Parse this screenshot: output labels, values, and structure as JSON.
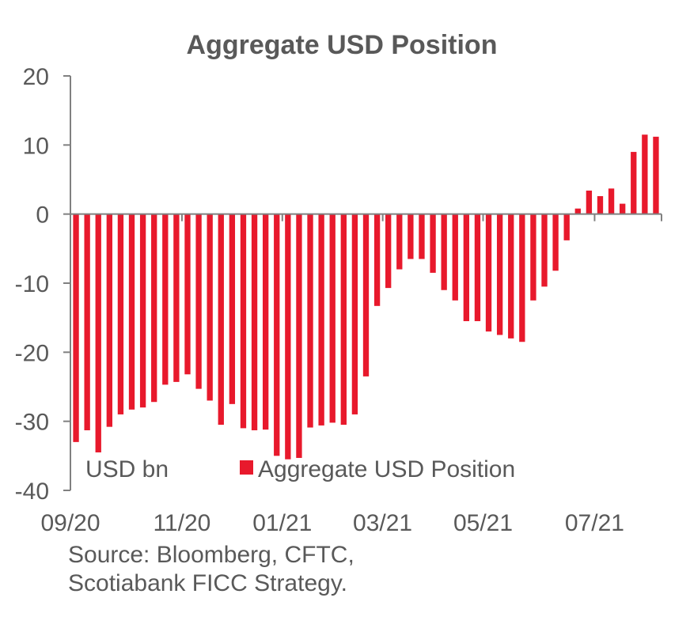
{
  "chart_data": {
    "type": "bar",
    "title": "Aggregate USD Position",
    "unit_label": "USD bn",
    "legend": {
      "entries": [
        "Aggregate USD Position"
      ],
      "placement": "bottom-inside"
    },
    "ylim": [
      -40,
      20
    ],
    "yticks": [
      "20",
      "10",
      "0",
      "-10",
      "-20",
      "-30",
      "-40"
    ],
    "ytick_values": [
      20,
      10,
      0,
      -10,
      -20,
      -30,
      -40
    ],
    "xtick_labels": [
      "09/20",
      "11/20",
      "01/21",
      "03/21",
      "05/21",
      "07/21"
    ],
    "xtick_bar_index": [
      0,
      10,
      19,
      28,
      37,
      47
    ],
    "grid": false,
    "series": [
      {
        "name": "Aggregate USD Position",
        "color": "#E8192C",
        "values": [
          -33.0,
          -31.3,
          -34.5,
          -30.8,
          -29.0,
          -28.3,
          -28.0,
          -27.2,
          -24.7,
          -24.3,
          -23.2,
          -25.3,
          -27.0,
          -30.5,
          -27.5,
          -31.0,
          -31.3,
          -31.2,
          -35.0,
          -35.5,
          -35.3,
          -30.9,
          -30.6,
          -30.2,
          -30.5,
          -29.0,
          -23.5,
          -13.3,
          -10.7,
          -8.0,
          -6.5,
          -6.5,
          -8.5,
          -11.0,
          -12.5,
          -15.5,
          -15.5,
          -17.0,
          -17.5,
          -18.0,
          -18.5,
          -12.5,
          -10.5,
          -8.2,
          -3.8,
          0.8,
          3.4,
          2.6,
          3.7,
          1.5,
          9.0,
          11.5,
          11.2
        ]
      }
    ]
  },
  "source": {
    "line1": "Source: Bloomberg, CFTC,",
    "line2": "Scotiabank FICC  Strategy."
  }
}
